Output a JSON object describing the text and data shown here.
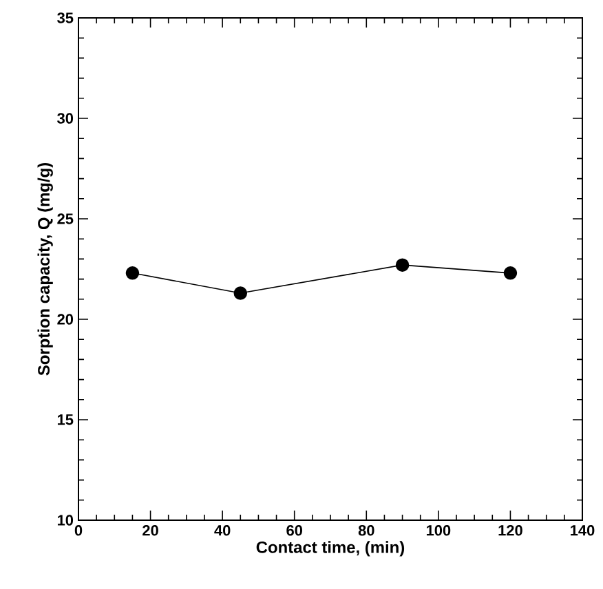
{
  "chart_data": {
    "type": "line",
    "xlabel": "Contact time, (min)",
    "ylabel": "Sorption capacity, Q (mg/g)",
    "x": [
      15,
      45,
      90,
      120
    ],
    "series": [
      {
        "color": "#000000",
        "values": [
          22.3,
          21.3,
          22.7,
          22.3
        ]
      }
    ],
    "xlim": [
      0,
      140
    ],
    "xticks": [
      0,
      20,
      40,
      60,
      80,
      100,
      120,
      140
    ],
    "ylim": [
      10,
      35
    ],
    "yticks": [
      10,
      15,
      20,
      25,
      30,
      35
    ],
    "marker": "circle",
    "line_style": "solid"
  }
}
